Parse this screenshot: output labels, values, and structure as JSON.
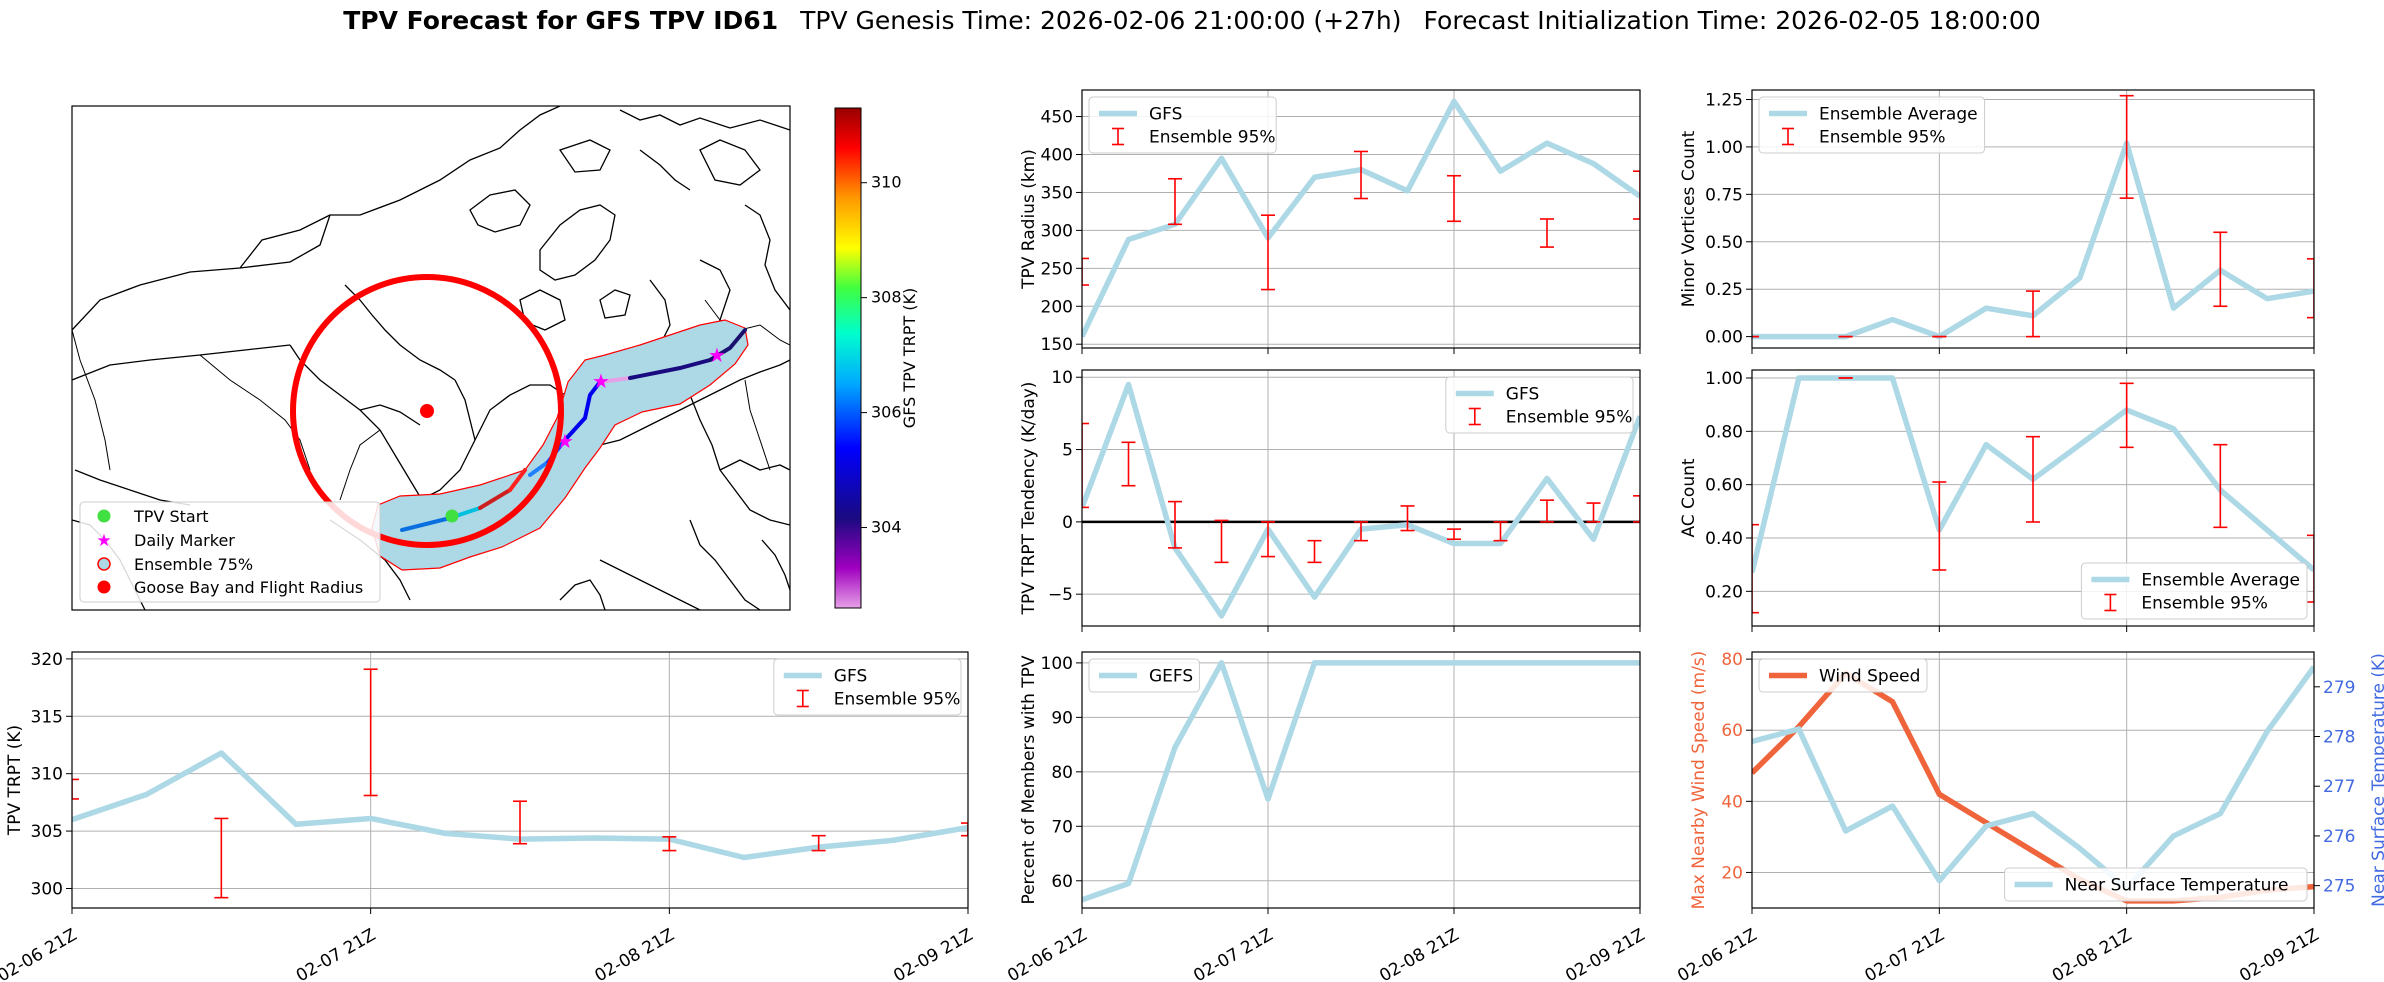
{
  "header": {
    "title_bold": "TPV Forecast for GFS TPV ID61",
    "genesis": "TPV Genesis Time: 2026-02-06 21:00:00 (+27h)",
    "init": "Forecast Initialization Time: 2026-02-05 18:00:00"
  },
  "colors": {
    "gfs_line": "#add8e6",
    "errorbar": "#ff0000",
    "wind": "#f0643c",
    "temp_axis": "#4169e1",
    "circle": "#ff0000",
    "ensemble_fill": "#add8e6"
  },
  "chart_data": [
    {
      "id": "map",
      "type": "map",
      "colorbar": {
        "label": "GFS TPV TRPT (K)",
        "ticks": [
          304,
          306,
          308,
          310
        ],
        "range": [
          302.6,
          311.3
        ]
      },
      "legend": {
        "position": "lower-left",
        "entries": [
          "TPV Start",
          "Daily Marker",
          "Ensemble 75%",
          "Goose Bay and Flight Radius"
        ]
      }
    },
    {
      "id": "radius",
      "type": "line",
      "ylabel": "TPV Radius (km)",
      "ylim": [
        145,
        485
      ],
      "yticks": [
        150,
        200,
        250,
        300,
        350,
        400,
        450
      ],
      "x": [
        0,
        1,
        2,
        3,
        4,
        5,
        6,
        7,
        8,
        9,
        10,
        11,
        12
      ],
      "series": [
        {
          "name": "GFS",
          "values": [
            160,
            288,
            308,
            395,
            290,
            370,
            380,
            352,
            470,
            378,
            415,
            388,
            345
          ]
        }
      ],
      "errorbars": [
        {
          "x": 0,
          "lo": 228,
          "hi": 263
        },
        {
          "x": 2,
          "lo": 308,
          "hi": 368
        },
        {
          "x": 4,
          "lo": 222,
          "hi": 320
        },
        {
          "x": 6,
          "lo": 342,
          "hi": 404
        },
        {
          "x": 8,
          "lo": 312,
          "hi": 372
        },
        {
          "x": 10,
          "lo": 278,
          "hi": 315
        },
        {
          "x": 12,
          "lo": 315,
          "hi": 378
        }
      ],
      "legend": {
        "position": "top-left",
        "entries": [
          "GFS",
          "Ensemble 95%"
        ]
      }
    },
    {
      "id": "minor",
      "type": "line",
      "ylabel": "Minor Vortices Count",
      "ylim": [
        -0.06,
        1.3
      ],
      "yticks": [
        0.0,
        0.25,
        0.5,
        0.75,
        1.0,
        1.25
      ],
      "x": [
        0,
        1,
        2,
        3,
        4,
        5,
        6,
        7,
        8,
        9,
        10,
        11,
        12
      ],
      "series": [
        {
          "name": "Ensemble Average",
          "values": [
            0.0,
            0.0,
            0.0,
            0.09,
            0.0,
            0.15,
            0.11,
            0.31,
            1.02,
            0.15,
            0.35,
            0.2,
            0.24
          ]
        }
      ],
      "errorbars": [
        {
          "x": 0,
          "lo": 0.0,
          "hi": 0.0
        },
        {
          "x": 2,
          "lo": 0.0,
          "hi": 0.0
        },
        {
          "x": 4,
          "lo": 0.0,
          "hi": 0.0
        },
        {
          "x": 6,
          "lo": 0.0,
          "hi": 0.24
        },
        {
          "x": 8,
          "lo": 0.73,
          "hi": 1.27
        },
        {
          "x": 10,
          "lo": 0.16,
          "hi": 0.55
        },
        {
          "x": 12,
          "lo": 0.1,
          "hi": 0.41
        }
      ],
      "legend": {
        "position": "top-left",
        "entries": [
          "Ensemble Average",
          "Ensemble 95%"
        ]
      }
    },
    {
      "id": "tendency",
      "type": "line",
      "ylabel": "TPV TRPT Tendency (K/day)",
      "ylim": [
        -7.2,
        10.5
      ],
      "yticks": [
        -5,
        0,
        5,
        10
      ],
      "x": [
        0,
        1,
        2,
        3,
        4,
        5,
        6,
        7,
        8,
        9,
        10,
        11,
        12
      ],
      "series": [
        {
          "name": "GFS",
          "values": [
            1.0,
            9.5,
            -1.8,
            -6.5,
            -0.5,
            -5.2,
            -0.5,
            -0.2,
            -1.5,
            -1.5,
            3.0,
            -1.2,
            7.3
          ]
        }
      ],
      "zero_line": true,
      "errorbars": [
        {
          "x": 0,
          "lo": 1.0,
          "hi": 6.8
        },
        {
          "x": 1,
          "lo": 2.5,
          "hi": 5.5
        },
        {
          "x": 2,
          "lo": -1.8,
          "hi": 1.4
        },
        {
          "x": 3,
          "lo": -2.8,
          "hi": 0.1
        },
        {
          "x": 4,
          "lo": -2.4,
          "hi": 0.0
        },
        {
          "x": 5,
          "lo": -2.8,
          "hi": -1.3
        },
        {
          "x": 6,
          "lo": -1.3,
          "hi": 0.0
        },
        {
          "x": 7,
          "lo": -0.6,
          "hi": 1.1
        },
        {
          "x": 8,
          "lo": -1.2,
          "hi": -0.5
        },
        {
          "x": 9,
          "lo": -1.3,
          "hi": 0.0
        },
        {
          "x": 10,
          "lo": 0.0,
          "hi": 1.5
        },
        {
          "x": 11,
          "lo": 0.0,
          "hi": 1.3
        },
        {
          "x": 12,
          "lo": 0.0,
          "hi": 1.8
        }
      ],
      "legend": {
        "position": "top-right",
        "entries": [
          "GFS",
          "Ensemble 95%"
        ]
      }
    },
    {
      "id": "ac",
      "type": "line",
      "ylabel": "AC Count",
      "ylim": [
        0.07,
        1.03
      ],
      "yticks": [
        0.2,
        0.4,
        0.6,
        0.8,
        1.0
      ],
      "x": [
        0,
        1,
        2,
        3,
        4,
        5,
        6,
        7,
        8,
        9,
        10,
        11,
        12
      ],
      "series": [
        {
          "name": "Ensemble Average",
          "values": [
            0.27,
            1.0,
            1.0,
            1.0,
            0.43,
            0.75,
            0.62,
            0.75,
            0.88,
            0.81,
            0.58,
            0.43,
            0.28
          ]
        }
      ],
      "errorbars": [
        {
          "x": 0,
          "lo": 0.12,
          "hi": 0.45
        },
        {
          "x": 2,
          "lo": 1.0,
          "hi": 1.0
        },
        {
          "x": 4,
          "lo": 0.28,
          "hi": 0.61
        },
        {
          "x": 6,
          "lo": 0.46,
          "hi": 0.78
        },
        {
          "x": 8,
          "lo": 0.74,
          "hi": 0.98
        },
        {
          "x": 10,
          "lo": 0.44,
          "hi": 0.75
        },
        {
          "x": 12,
          "lo": 0.16,
          "hi": 0.41
        }
      ],
      "legend": {
        "position": "bottom-right",
        "entries": [
          "Ensemble Average",
          "Ensemble 95%"
        ]
      }
    },
    {
      "id": "trpt",
      "type": "line",
      "ylabel": "TPV TRPT (K)",
      "ylim": [
        298.3,
        320.6
      ],
      "yticks": [
        300,
        305,
        310,
        315,
        320
      ],
      "x": [
        0,
        1,
        2,
        3,
        4,
        5,
        6,
        7,
        8,
        9,
        10,
        11,
        12
      ],
      "series": [
        {
          "name": "GFS",
          "values": [
            306.0,
            308.2,
            311.8,
            305.6,
            306.1,
            304.8,
            304.3,
            304.4,
            304.3,
            302.7,
            303.6,
            304.2,
            305.3
          ]
        }
      ],
      "errorbars": [
        {
          "x": 0,
          "lo": 307.8,
          "hi": 309.5
        },
        {
          "x": 2,
          "lo": 299.2,
          "hi": 306.1
        },
        {
          "x": 4,
          "lo": 308.1,
          "hi": 319.1
        },
        {
          "x": 6,
          "lo": 303.9,
          "hi": 307.6
        },
        {
          "x": 8,
          "lo": 303.3,
          "hi": 304.5
        },
        {
          "x": 10,
          "lo": 303.3,
          "hi": 304.6
        },
        {
          "x": 12,
          "lo": 304.6,
          "hi": 305.7
        }
      ],
      "xticks": [
        "02-06 21Z",
        "02-07 21Z",
        "02-08 21Z",
        "02-09 21Z"
      ],
      "legend": {
        "position": "top-right",
        "entries": [
          "GFS",
          "Ensemble 95%"
        ]
      }
    },
    {
      "id": "percent",
      "type": "line",
      "ylabel": "Percent of Members with TPV",
      "ylim": [
        55,
        102
      ],
      "yticks": [
        60,
        70,
        80,
        90,
        100
      ],
      "x": [
        0,
        1,
        2,
        3,
        4,
        5,
        6,
        7,
        8,
        9,
        10,
        11,
        12
      ],
      "series": [
        {
          "name": "GEFS",
          "values": [
            56.5,
            59.5,
            84.5,
            100,
            75,
            100,
            100,
            100,
            100,
            100,
            100,
            100,
            100
          ]
        }
      ],
      "xticks": [
        "02-06 21Z",
        "02-07 21Z",
        "02-08 21Z",
        "02-09 21Z"
      ],
      "legend": {
        "position": "top-left",
        "entries": [
          "GEFS"
        ]
      }
    },
    {
      "id": "wind",
      "type": "line",
      "ylabel": "Max Nearby Wind Speed (m/s)",
      "ylabel_right": "Near Surface Temperature (K)",
      "ylim": [
        10,
        82
      ],
      "yticks": [
        20,
        40,
        60,
        80
      ],
      "ylim_right": [
        274.55,
        279.7
      ],
      "yticks_right": [
        275,
        276,
        277,
        278,
        279
      ],
      "x": [
        0,
        1,
        2,
        3,
        4,
        5,
        6,
        7,
        8,
        9,
        10,
        11,
        12
      ],
      "series": [
        {
          "name": "Wind Speed",
          "axis": "left",
          "values": [
            48,
            61,
            76,
            68,
            42,
            34,
            26,
            18,
            12,
            12,
            13,
            15,
            16
          ]
        },
        {
          "name": "Near Surface Temperature",
          "axis": "right",
          "values": [
            277.9,
            278.15,
            276.1,
            276.6,
            275.1,
            276.2,
            276.45,
            275.75,
            274.95,
            276.0,
            276.45,
            278.1,
            279.4
          ]
        }
      ],
      "xticks": [
        "02-06 21Z",
        "02-07 21Z",
        "02-08 21Z",
        "02-09 21Z"
      ],
      "legend": {
        "position": "top-left",
        "entries": [
          "Wind Speed"
        ]
      },
      "legend_right": {
        "position": "bottom-right",
        "entries": [
          "Near Surface Temperature"
        ]
      }
    }
  ]
}
